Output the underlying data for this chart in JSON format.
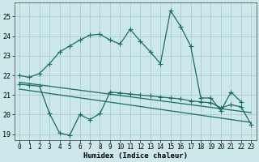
{
  "xlabel": "Humidex (Indice chaleur)",
  "bg_color": "#cce8ea",
  "grid_color": "#aacdd0",
  "line_color": "#1a6b60",
  "xlim": [
    -0.5,
    23.5
  ],
  "ylim": [
    18.7,
    25.7
  ],
  "yticks": [
    19,
    20,
    21,
    22,
    23,
    24,
    25
  ],
  "xticks": [
    0,
    1,
    2,
    3,
    4,
    5,
    6,
    7,
    8,
    9,
    10,
    11,
    12,
    13,
    14,
    15,
    16,
    17,
    18,
    19,
    20,
    21,
    22,
    23
  ],
  "line1_x": [
    0,
    1,
    2,
    3,
    4,
    5,
    6,
    7,
    8,
    9,
    10,
    11,
    12,
    13,
    14,
    15,
    16,
    17,
    18,
    19,
    20,
    21,
    22
  ],
  "line1_y": [
    22.0,
    21.9,
    22.1,
    22.6,
    23.2,
    23.5,
    23.8,
    24.05,
    24.1,
    23.8,
    23.6,
    24.35,
    23.75,
    23.2,
    22.6,
    25.3,
    24.5,
    23.5,
    20.85,
    20.85,
    20.2,
    21.15,
    20.65
  ],
  "line2_x": [
    0,
    1,
    2,
    3,
    4,
    5,
    6,
    7,
    8,
    9,
    10,
    11,
    12,
    13,
    14,
    15,
    16,
    17,
    18,
    19,
    20,
    21,
    22,
    23
  ],
  "line2_y": [
    21.55,
    21.5,
    21.45,
    20.05,
    19.05,
    18.95,
    20.0,
    19.75,
    20.05,
    21.15,
    21.1,
    21.05,
    21.0,
    20.95,
    20.9,
    20.85,
    20.8,
    20.7,
    20.65,
    20.6,
    20.35,
    20.5,
    20.4,
    19.5
  ],
  "line3_x": [
    0,
    23
  ],
  "line3_y": [
    21.65,
    20.1
  ],
  "line4_x": [
    0,
    23
  ],
  "line4_y": [
    21.3,
    19.6
  ],
  "marker": "+",
  "marker_size": 4,
  "linewidth": 0.9
}
